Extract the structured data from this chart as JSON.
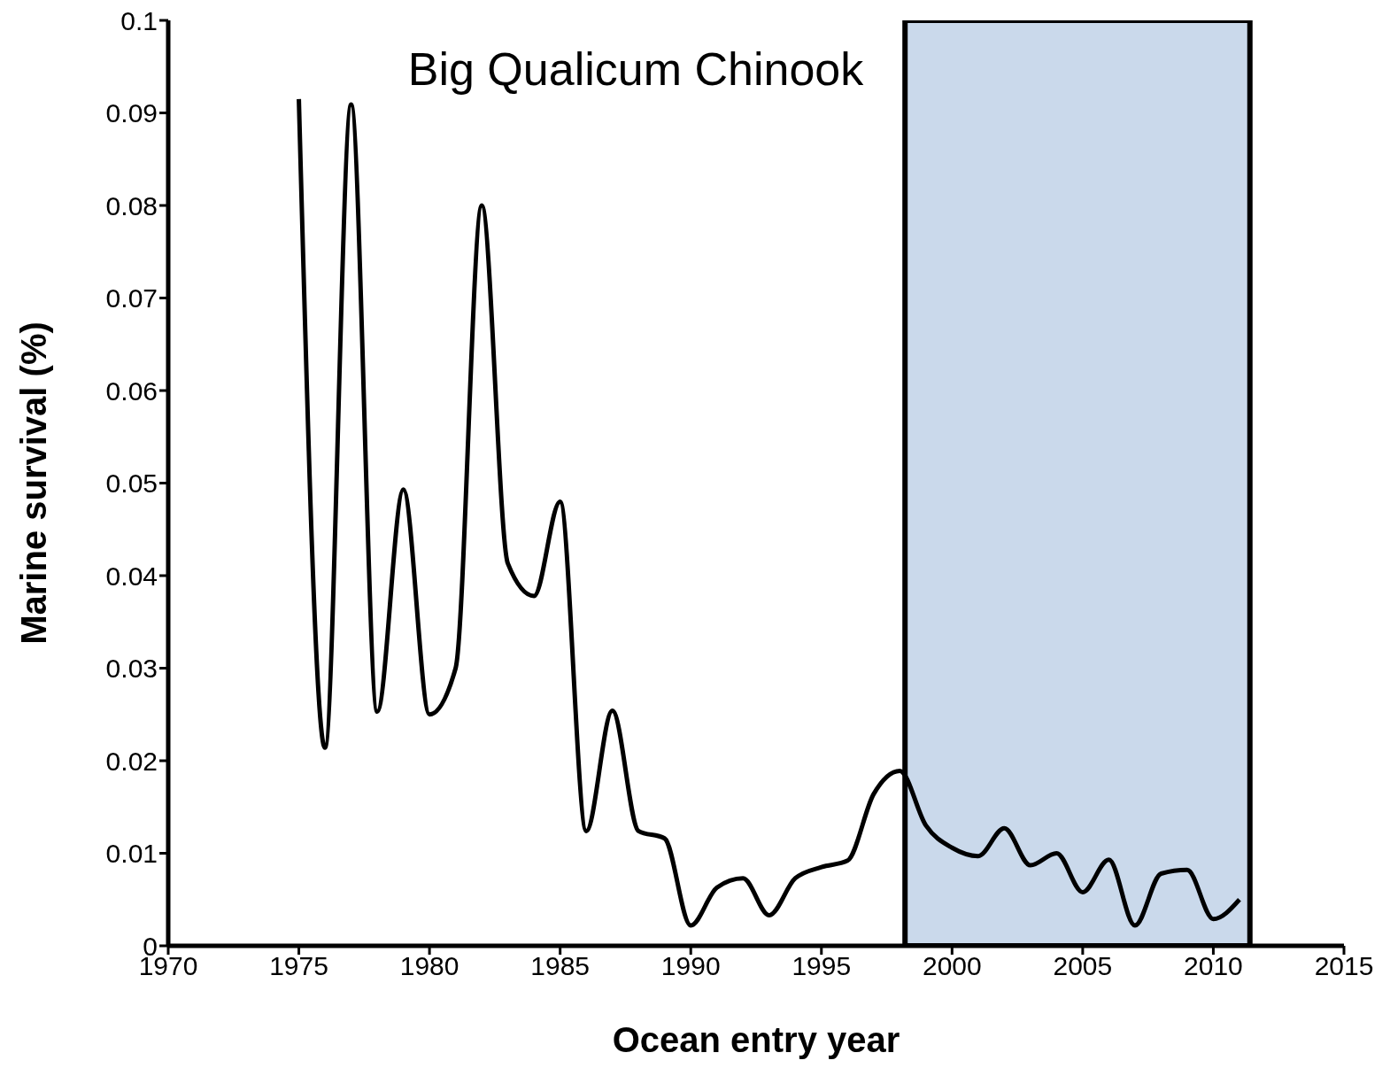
{
  "chart_data": {
    "type": "line",
    "title": "Big Qualicum Chinook",
    "xlabel": "Ocean entry year",
    "ylabel": "Marine survival (%)",
    "x": [
      1975,
      1976,
      1977,
      1978,
      1979,
      1980,
      1981,
      1982,
      1983,
      1984,
      1985,
      1986,
      1987,
      1988,
      1989,
      1990,
      1991,
      1992,
      1993,
      1994,
      1995,
      1996,
      1997,
      1998,
      1999,
      2000,
      2001,
      2002,
      2003,
      2004,
      2005,
      2006,
      2007,
      2008,
      2009,
      2010,
      2011
    ],
    "series": [
      {
        "color": "#000000",
        "values": [
          0.0915,
          0.0214,
          0.0909,
          0.0253,
          0.0493,
          0.025,
          0.03,
          0.08,
          0.0413,
          0.0378,
          0.048,
          0.0124,
          0.0254,
          0.0124,
          0.0116,
          0.0022,
          0.0063,
          0.0073,
          0.0033,
          0.0073,
          0.0085,
          0.0092,
          0.0164,
          0.0189,
          0.013,
          0.0106,
          0.0097,
          0.0127,
          0.0087,
          0.01,
          0.0058,
          0.0093,
          0.0022,
          0.0078,
          0.0082,
          0.0029,
          0.005
        ]
      }
    ],
    "xlim": [
      1970,
      2015
    ],
    "xticks": [
      1970,
      1975,
      1980,
      1985,
      1990,
      1995,
      2000,
      2005,
      2010,
      2015
    ],
    "ylim": [
      0,
      0.1
    ],
    "yticks": [
      0,
      0.01,
      0.02,
      0.03,
      0.04,
      0.05,
      0.06,
      0.07,
      0.08,
      0.09,
      0.1
    ],
    "bands": [
      {
        "axis": "x",
        "from": 1998.2,
        "to": 2011.4,
        "color": "#b8cce4"
      }
    ],
    "grid": false,
    "legend": false,
    "marker": "none",
    "line_style": "solid"
  }
}
